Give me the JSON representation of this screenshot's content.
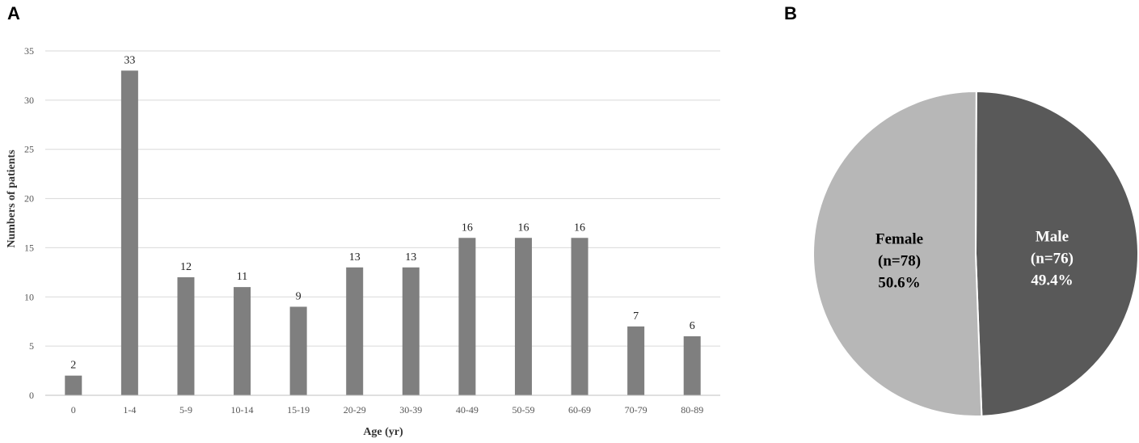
{
  "panels": {
    "a": "A",
    "b": "B"
  },
  "chart_data": [
    {
      "type": "bar",
      "title": "",
      "xlabel": "Age (yr)",
      "ylabel": "Numbers of patients",
      "ylim": [
        0,
        35
      ],
      "yticks": [
        0,
        5,
        10,
        15,
        20,
        25,
        30,
        35
      ],
      "grid": true,
      "categories": [
        "0",
        "1-4",
        "5-9",
        "10-14",
        "15-19",
        "20-29",
        "30-39",
        "40-49",
        "50-59",
        "60-69",
        "70-79",
        "80-89"
      ],
      "values": [
        2,
        33,
        12,
        11,
        9,
        13,
        13,
        16,
        16,
        16,
        7,
        6
      ],
      "data_labels": true,
      "bar_color": "#7f7f7f"
    },
    {
      "type": "pie",
      "slices": [
        {
          "label": "Male",
          "count": "(n=76)",
          "percent": "49.4%",
          "value": 76,
          "color": "#595959",
          "text_color": "#ffffff"
        },
        {
          "label": "Female",
          "count": "(n=78)",
          "percent": "50.6%",
          "value": 78,
          "color": "#b7b7b7",
          "text_color": "#000000"
        }
      ]
    }
  ]
}
